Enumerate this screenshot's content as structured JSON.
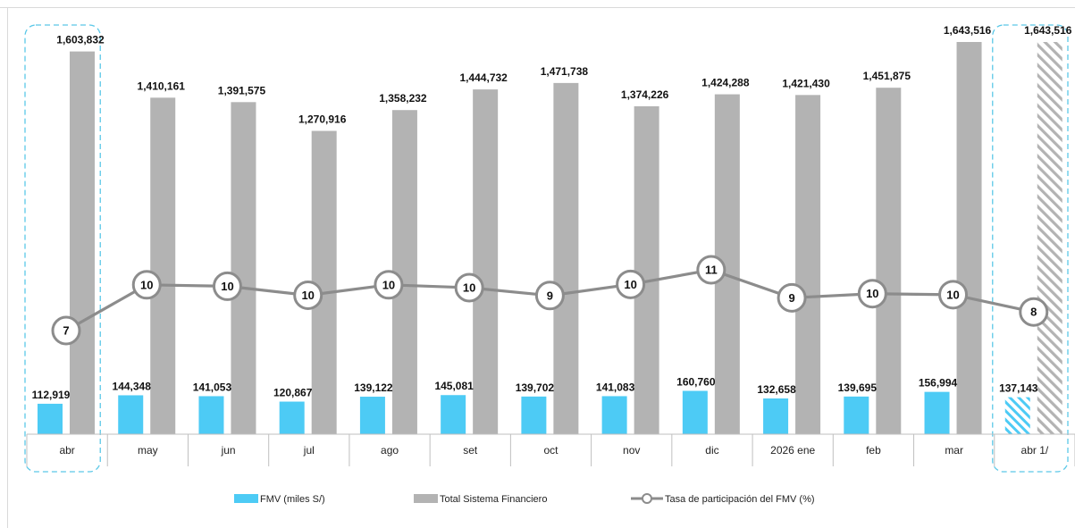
{
  "chart_data": {
    "type": "bar",
    "categories": [
      "abr",
      "may",
      "jun",
      "jul",
      "ago",
      "set",
      "oct",
      "nov",
      "dic",
      "2026 ene",
      "feb",
      "mar",
      "abr 1/"
    ],
    "series": [
      {
        "name": "FMV (miles S/)",
        "kind": "bar",
        "color": "#4dcbf5",
        "values": [
          112919,
          144348,
          141053,
          120867,
          139122,
          145081,
          139702,
          141083,
          160760,
          132658,
          139695,
          156994,
          137143
        ],
        "labels": [
          "112,919",
          "144,348",
          "141,053",
          "120,867",
          "139,122",
          "145,081",
          "139,702",
          "141,083",
          "160,760",
          "132,658",
          "139,695",
          "156,994",
          "137,143"
        ]
      },
      {
        "name": "Total Sistema Financiero",
        "kind": "bar",
        "color": "#b3b3b3",
        "values": [
          1603832,
          1410161,
          1391575,
          1270916,
          1358232,
          1444732,
          1471738,
          1374226,
          1424288,
          1421430,
          1451875,
          1643516,
          1643516
        ],
        "labels": [
          "1,603,832",
          "1,410,161",
          "1,391,575",
          "1,270,916",
          "1,358,232",
          "1,444,732",
          "1,471,738",
          "1,374,226",
          "1,424,288",
          "1,421,430",
          "1,451,875",
          "1,643,516",
          "1,643,516"
        ]
      },
      {
        "name": "Tasa de participación del FMV (%)",
        "kind": "line",
        "color": "#8c8c8c",
        "values": [
          7.04,
          10.24,
          10.14,
          9.51,
          10.24,
          10.04,
          9.49,
          10.27,
          11.29,
          9.33,
          9.62,
          9.55,
          8.34
        ],
        "labels": [
          "7",
          "10",
          "10",
          "10",
          "10",
          "10",
          "9",
          "10",
          "11",
          "9",
          "10",
          "10",
          "8"
        ]
      }
    ],
    "highlighted_categories": [
      "abr",
      "abr 1/"
    ],
    "hatched_category": "abr 1/",
    "highlight_color": "#5bc8e8",
    "legend_position": "bottom",
    "grid": false
  }
}
